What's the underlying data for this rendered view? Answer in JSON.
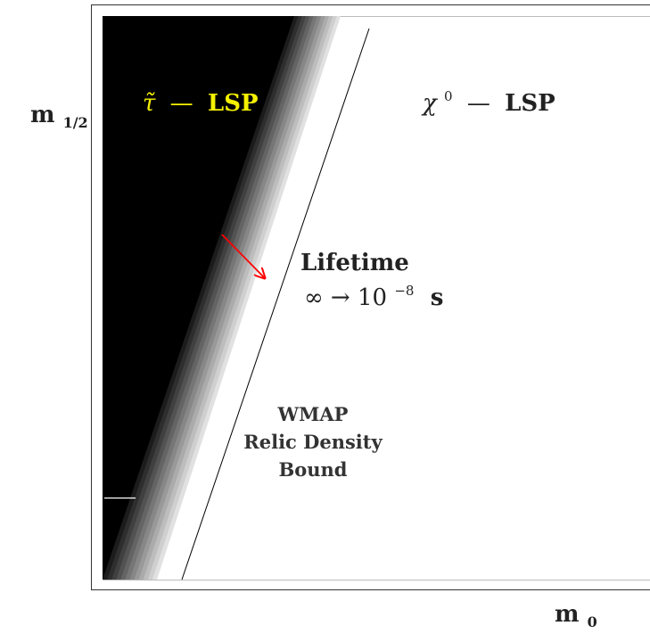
{
  "axes": {
    "x_label_main": "m",
    "x_label_sub": "0",
    "y_label_main": "m",
    "y_label_sub": "1/2"
  },
  "regions": {
    "stau_symbol": "τ̃",
    "stau_dash": "—",
    "stau_lsp": "LSP",
    "neutralino_symbol": "χ",
    "neutralino_sup": "0",
    "neutralino_dash": "—",
    "neutralino_lsp": "LSP"
  },
  "annotations": {
    "lifetime_title": "Lifetime",
    "lifetime_range": "∞ → 10",
    "lifetime_exp": "−8",
    "lifetime_unit": "s",
    "wmap_line1": "WMAP",
    "wmap_line2": "Relic Density",
    "wmap_line3": "Bound"
  },
  "colors": {
    "stau_region": "#000000",
    "stau_label": "#f5f000",
    "arrow": "#ff0000",
    "text": "#222222",
    "frame": "#333333"
  }
}
